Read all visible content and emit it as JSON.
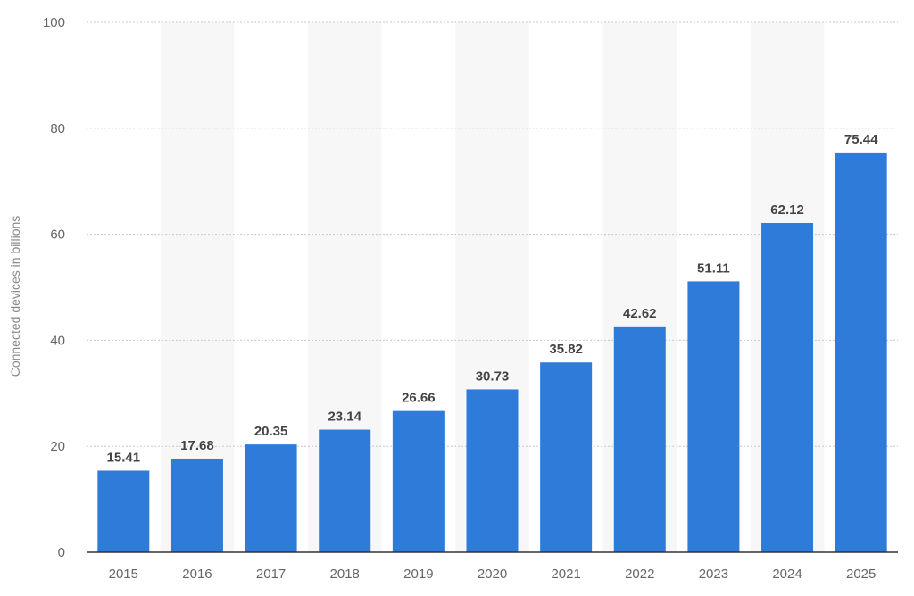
{
  "chart_data": {
    "type": "bar",
    "categories": [
      "2015",
      "2016",
      "2017",
      "2018",
      "2019",
      "2020",
      "2021",
      "2022",
      "2023",
      "2024",
      "2025"
    ],
    "values": [
      15.41,
      17.68,
      20.35,
      23.14,
      26.66,
      30.73,
      35.82,
      42.62,
      51.11,
      62.12,
      75.44
    ],
    "value_labels": [
      "15.41",
      "17.68",
      "20.35",
      "23.14",
      "26.66",
      "30.73",
      "35.82",
      "42.62",
      "51.11",
      "62.12",
      "75.44"
    ],
    "title": "",
    "xlabel": "",
    "ylabel": "Connected devices in billions",
    "ylim": [
      0,
      100
    ],
    "yticks": [
      "0",
      "20",
      "40",
      "60",
      "80",
      "100"
    ],
    "grid": true,
    "bar_color": "#2e7bd9",
    "band_color": "#f7f7f7"
  }
}
